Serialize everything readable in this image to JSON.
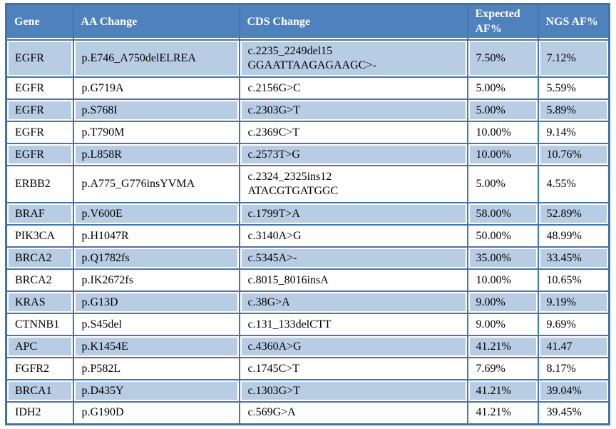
{
  "colors": {
    "header_bg": "#4f81bd",
    "band_bg": "#b8cce4",
    "grid_border": "#4576ad",
    "header_text": "#ffffff",
    "body_text": "#000000"
  },
  "table": {
    "columns": {
      "gene": "Gene",
      "aa": "AA Change",
      "cds": "CDS Change",
      "expected": "Expected AF%",
      "ngs": "NGS AF%"
    },
    "rows": [
      {
        "gene": "EGFR",
        "aa": "p.E746_A750delELREA",
        "cds": "c.2235_2249del15\nGGAATTAAGAGAAGC>-",
        "expected": "7.50%",
        "ngs": "7.12%"
      },
      {
        "gene": "EGFR",
        "aa": "p.G719A",
        "cds": "c.2156G>C",
        "expected": "5.00%",
        "ngs": "5.59%"
      },
      {
        "gene": "EGFR",
        "aa": "p.S768I",
        "cds": "c.2303G>T",
        "expected": "5.00%",
        "ngs": "5.89%"
      },
      {
        "gene": "EGFR",
        "aa": "p.T790M",
        "cds": "c.2369C>T",
        "expected": "10.00%",
        "ngs": "9.14%"
      },
      {
        "gene": "EGFR",
        "aa": "p.L858R",
        "cds": "c.2573T>G",
        "expected": "10.00%",
        "ngs": "10.76%"
      },
      {
        "gene": "ERBB2",
        "aa": "p.A775_G776insYVMA",
        "cds": "c.2324_2325ins12\nATACGTGATGGC",
        "expected": "5.00%",
        "ngs": "4.55%"
      },
      {
        "gene": "BRAF",
        "aa": "p.V600E",
        "cds": "c.1799T>A",
        "expected": "58.00%",
        "ngs": "52.89%"
      },
      {
        "gene": "PIK3CA",
        "aa": "p.H1047R",
        "cds": "c.3140A>G",
        "expected": "50.00%",
        "ngs": "48.99%"
      },
      {
        "gene": "BRCA2",
        "aa": "p.Q1782fs",
        "cds": "c.5345A>-",
        "expected": "35.00%",
        "ngs": "33.45%"
      },
      {
        "gene": "BRCA2",
        "aa": "p.IK2672fs",
        "cds": "c.8015_8016insA",
        "expected": "10.00%",
        "ngs": "10.65%"
      },
      {
        "gene": "KRAS",
        "aa": "p.G13D",
        "cds": "c.38G>A",
        "expected": "9.00%",
        "ngs": "9.19%"
      },
      {
        "gene": "CTNNB1",
        "aa": "p.S45del",
        "cds": "c.131_133delCTT",
        "expected": "9.00%",
        "ngs": "9.69%"
      },
      {
        "gene": "APC",
        "aa": "p.K1454E",
        "cds": "c.4360A>G",
        "expected": "41.21%",
        "ngs": "41.47"
      },
      {
        "gene": "FGFR2",
        "aa": "p.P582L",
        "cds": "c.1745C>T",
        "expected": "7.69%",
        "ngs": "8.17%"
      },
      {
        "gene": "BRCA1",
        "aa": "p.D435Y",
        "cds": "c.1303G>T",
        "expected": "41.21%",
        "ngs": "39.04%"
      },
      {
        "gene": "IDH2",
        "aa": "p.G190D",
        "cds": "c.569G>A",
        "expected": "41.21%",
        "ngs": "39.45%"
      }
    ]
  }
}
